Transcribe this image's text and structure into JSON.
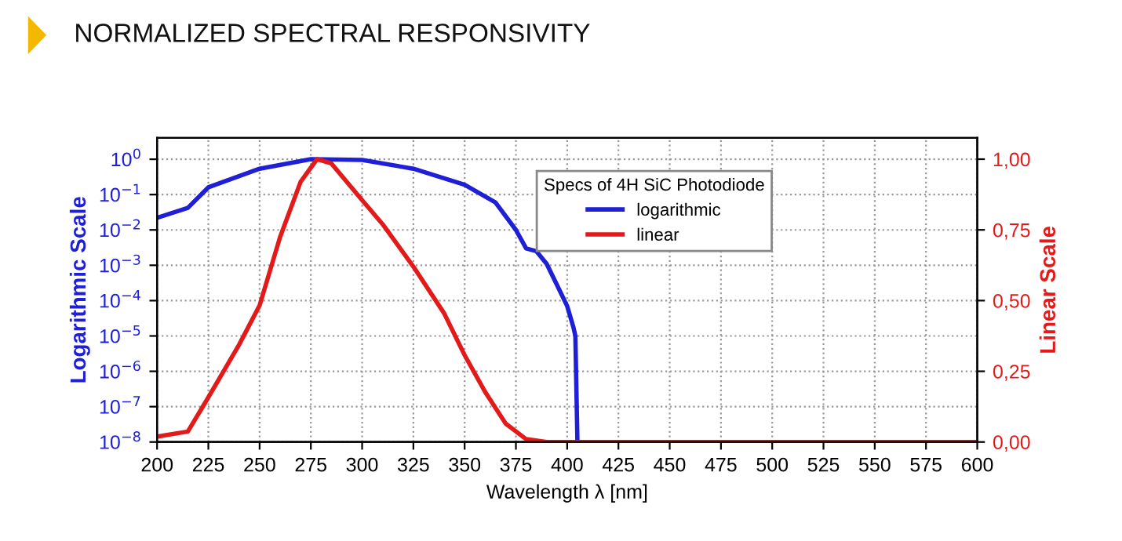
{
  "chart_data": {
    "type": "line",
    "title": "NORMALIZED SPECTRAL RESPONSIVITY",
    "xlabel": "Wavelength λ [nm]",
    "ylabel": "Logarithmic Scale",
    "y2label": "Linear Scale",
    "legend_title": "Specs of 4H SiC Photodiode",
    "series": [
      {
        "name": "logarithmic",
        "color": "#1f1fd6",
        "x": [
          200,
          215,
          225,
          250,
          275,
          300,
          325,
          350,
          365,
          375,
          380,
          385,
          390,
          395,
          400,
          403,
          404,
          405
        ],
        "values": [
          0.022,
          0.042,
          0.16,
          0.54,
          1.0,
          0.95,
          0.54,
          0.19,
          0.06,
          0.01,
          0.003,
          0.0025,
          0.0011,
          0.00028,
          7e-05,
          1.8e-05,
          1e-05,
          1e-08
        ]
      },
      {
        "name": "linear",
        "color": "#e31a1a",
        "axis": "y2",
        "x": [
          200,
          215,
          225,
          240,
          250,
          260,
          270,
          278,
          285,
          300,
          310,
          325,
          340,
          350,
          360,
          370,
          380,
          390,
          600
        ],
        "values": [
          0.019,
          0.037,
          0.158,
          0.344,
          0.483,
          0.725,
          0.92,
          1.0,
          0.985,
          0.855,
          0.77,
          0.62,
          0.455,
          0.307,
          0.177,
          0.065,
          0.01,
          0.0,
          0.0
        ]
      }
    ],
    "xlim": [
      200,
      600
    ],
    "xticks": [
      200,
      225,
      250,
      275,
      300,
      325,
      350,
      375,
      400,
      425,
      450,
      475,
      500,
      525,
      550,
      575,
      600
    ],
    "log": "y",
    "ylim": [
      1e-08,
      4
    ],
    "yticks": [
      {
        "value": 1e-08,
        "label": "10$^{−8}$"
      },
      {
        "value": 1e-07,
        "label": "10$^{−7}$"
      },
      {
        "value": 1e-06,
        "label": "10$^{−6}$"
      },
      {
        "value": 1e-05,
        "label": "10$^{−5}$"
      },
      {
        "value": 0.0001,
        "label": "10$^{−4}$"
      },
      {
        "value": 0.001,
        "label": "10$^{−3}$"
      },
      {
        "value": 0.01,
        "label": "10$^{−2}$"
      },
      {
        "value": 0.1,
        "label": "10$^{−1}$"
      },
      {
        "value": 1,
        "label": "10$^{0}$"
      }
    ],
    "y2lim": [
      0,
      1.075
    ],
    "y2ticks": [
      {
        "value": 0,
        "label": "0,00"
      },
      {
        "value": 0.25,
        "label": "0,25"
      },
      {
        "value": 0.5,
        "label": "0,50"
      },
      {
        "value": 0.75,
        "label": "0,75"
      },
      {
        "value": 1.0,
        "label": "1,00"
      }
    ],
    "grid": true,
    "legend": "top right",
    "line_style": "solid",
    "marker": "none"
  }
}
